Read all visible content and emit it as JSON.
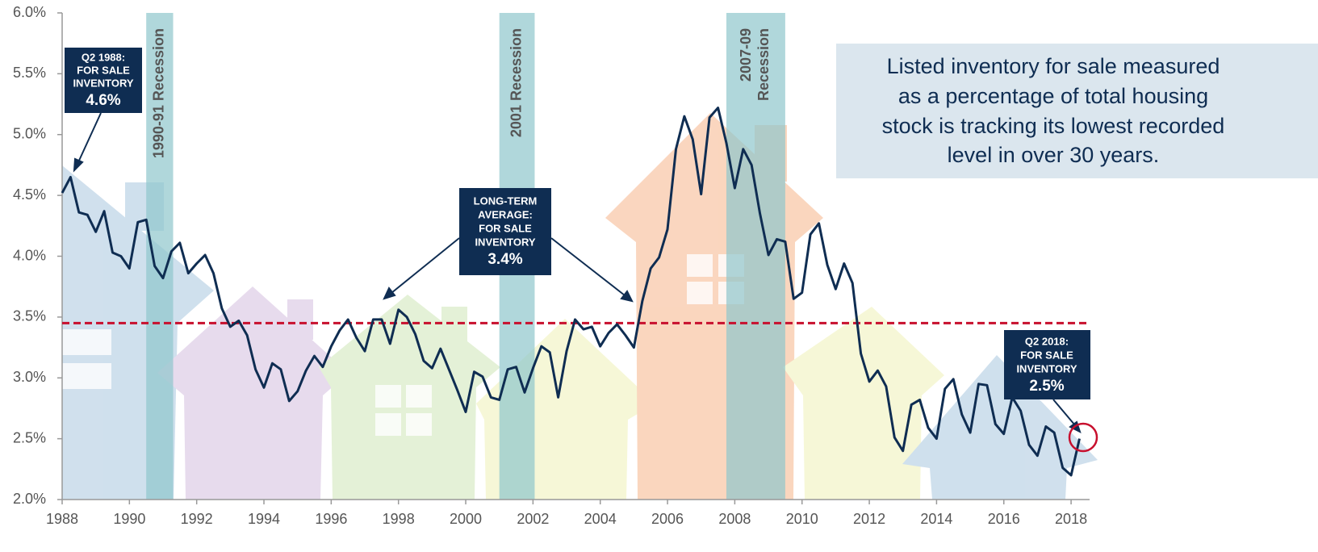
{
  "chart_data": {
    "type": "line",
    "color": "#0f2d52",
    "x": [
      1988,
      1988.25,
      1988.5,
      1988.75,
      1989,
      1989.25,
      1989.5,
      1989.75,
      1990,
      1990.25,
      1990.5,
      1990.75,
      1991,
      1991.25,
      1991.5,
      1991.75,
      1992,
      1992.25,
      1992.5,
      1992.75,
      1993,
      1993.25,
      1993.5,
      1993.75,
      1994,
      1994.25,
      1994.5,
      1994.75,
      1995,
      1995.25,
      1995.5,
      1995.75,
      1996,
      1996.25,
      1996.5,
      1996.75,
      1997,
      1997.25,
      1997.5,
      1997.75,
      1998,
      1998.25,
      1998.5,
      1998.75,
      1999,
      1999.25,
      1999.5,
      1999.75,
      2000,
      2000.25,
      2000.5,
      2000.75,
      2001,
      2001.25,
      2001.5,
      2001.75,
      2002,
      2002.25,
      2002.5,
      2002.75,
      2003,
      2003.25,
      2003.5,
      2003.75,
      2004,
      2004.25,
      2004.5,
      2004.75,
      2005,
      2005.25,
      2005.5,
      2005.75,
      2006,
      2006.25,
      2006.5,
      2006.75,
      2007,
      2007.25,
      2007.5,
      2007.75,
      2008,
      2008.25,
      2008.5,
      2008.75,
      2009,
      2009.25,
      2009.5,
      2009.75,
      2010,
      2010.25,
      2010.5,
      2010.75,
      2011,
      2011.25,
      2011.5,
      2011.75,
      2012,
      2012.25,
      2012.5,
      2012.75,
      2013,
      2013.25,
      2013.5,
      2013.75,
      2014,
      2014.25,
      2014.5,
      2014.75,
      2015,
      2015.25,
      2015.5,
      2015.75,
      2016,
      2016.25,
      2016.5,
      2016.75,
      2017,
      2017.25,
      2017.5,
      2017.75,
      2018,
      2018.25
    ],
    "values": [
      4.52,
      4.65,
      4.36,
      4.34,
      4.2,
      4.37,
      4.03,
      4.0,
      3.9,
      4.28,
      4.3,
      3.92,
      3.82,
      4.04,
      4.11,
      3.86,
      3.94,
      4.01,
      3.86,
      3.57,
      3.42,
      3.47,
      3.35,
      3.07,
      2.92,
      3.12,
      3.07,
      2.81,
      2.89,
      3.06,
      3.18,
      3.09,
      3.26,
      3.39,
      3.48,
      3.33,
      3.22,
      3.48,
      3.48,
      3.28,
      3.56,
      3.5,
      3.36,
      3.14,
      3.08,
      3.24,
      3.07,
      2.9,
      2.72,
      3.05,
      3.01,
      2.84,
      2.82,
      3.07,
      3.09,
      2.88,
      3.08,
      3.26,
      3.21,
      2.84,
      3.22,
      3.48,
      3.4,
      3.42,
      3.26,
      3.37,
      3.44,
      3.35,
      3.25,
      3.63,
      3.9,
      3.99,
      4.22,
      4.88,
      5.15,
      4.96,
      4.51,
      5.14,
      5.22,
      4.93,
      4.56,
      4.88,
      4.75,
      4.35,
      4.01,
      4.14,
      4.12,
      3.65,
      3.7,
      4.18,
      4.27,
      3.93,
      3.73,
      3.94,
      3.78,
      3.2,
      2.97,
      3.06,
      2.93,
      2.51,
      2.4,
      2.78,
      2.82,
      2.59,
      2.5,
      2.91,
      2.99,
      2.7,
      2.55,
      2.95,
      2.94,
      2.62,
      2.54,
      2.84,
      2.73,
      2.45,
      2.36,
      2.6,
      2.55,
      2.26,
      2.2,
      2.5
    ],
    "xlim": [
      1988,
      2018.55
    ],
    "xticks": [
      1988,
      1990,
      1992,
      1994,
      1996,
      1998,
      2000,
      2002,
      2004,
      2006,
      2008,
      2010,
      2012,
      2014,
      2016,
      2018
    ],
    "ylim": [
      2,
      6
    ],
    "yticks": [
      {
        "value": 2,
        "label": "2.0%"
      },
      {
        "value": 2.5,
        "label": "2.5%"
      },
      {
        "value": 3,
        "label": "3.0%"
      },
      {
        "value": 3.5,
        "label": "3.5%"
      },
      {
        "value": 4,
        "label": "4.0%"
      },
      {
        "value": 4.5,
        "label": "4.5%"
      },
      {
        "value": 5,
        "label": "5.0%"
      },
      {
        "value": 5.5,
        "label": "5.5%"
      },
      {
        "value": 6,
        "label": "6.0%"
      }
    ],
    "average_line": {
      "value": 3.45,
      "color": "#c8102e"
    },
    "recession_color": "#8ec6cc",
    "recessions": [
      {
        "start": 1990.5,
        "end": 1991.3,
        "label_lines": [
          "1990-91 Recession"
        ]
      },
      {
        "start": 2001,
        "end": 2002.05,
        "label_lines": [
          "2001 Recession"
        ]
      },
      {
        "start": 2007.75,
        "end": 2009.5,
        "label_lines": [
          "2007-09",
          "Recession"
        ]
      }
    ],
    "annotations": [
      {
        "lines": [
          "Q2 1988:",
          "FOR SALE",
          "INVENTORY"
        ],
        "value_label": "4.6%"
      },
      {
        "lines": [
          "LONG-TERM",
          "AVERAGE:",
          "FOR SALE",
          "INVENTORY"
        ],
        "value_label": "3.4%"
      },
      {
        "lines": [
          "Q2 2018:",
          "FOR SALE",
          "INVENTORY"
        ],
        "value_label": "2.5%"
      }
    ],
    "callout": [
      "Listed inventory for sale measured",
      "as a percentage of total housing",
      "stock is tracking its lowest recorded",
      "level in over 30 years."
    ]
  }
}
